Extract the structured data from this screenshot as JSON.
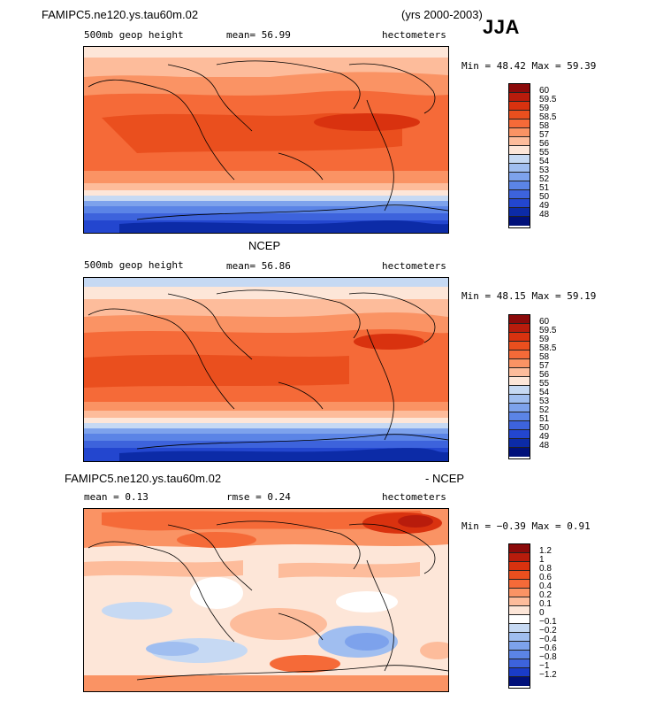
{
  "header": {
    "case_name": "FAMIPC5.ne120.ys.tau60m.02",
    "years": "(yrs 2000-2003)",
    "season": "JJA"
  },
  "panels": [
    {
      "id": "model",
      "title": "",
      "variable": "500mb geop height",
      "stat_text": "mean=   56.99",
      "units": "hectometers",
      "min_max": "Min =   48.42  Max =   59.39",
      "colorbar_labels": [
        "60",
        "59.5",
        "59",
        "58.5",
        "58",
        "57",
        "56",
        "55",
        "54",
        "53",
        "52",
        "51",
        "50",
        "49",
        "48"
      ],
      "colorbar_colors": [
        "#8b0a0a",
        "#b81c0c",
        "#d9320f",
        "#ea4f1e",
        "#f56a38",
        "#fa9364",
        "#fdbc9b",
        "#fde6d8",
        "#c6d9f3",
        "#a0bef0",
        "#7da2ec",
        "#5b84e6",
        "#3d63dc",
        "#2346cf",
        "#0c2ba7",
        "#00107a"
      ]
    },
    {
      "id": "ncep",
      "title": "NCEP",
      "variable": "500mb geop height",
      "stat_text": "mean=   56.86",
      "units": "hectometers",
      "min_max": "Min =   48.15  Max =   59.19",
      "colorbar_labels": [
        "60",
        "59.5",
        "59",
        "58.5",
        "58",
        "57",
        "56",
        "55",
        "54",
        "53",
        "52",
        "51",
        "50",
        "49",
        "48"
      ],
      "colorbar_colors": [
        "#8b0a0a",
        "#b81c0c",
        "#d9320f",
        "#ea4f1e",
        "#f56a38",
        "#fa9364",
        "#fdbc9b",
        "#fde6d8",
        "#c6d9f3",
        "#a0bef0",
        "#7da2ec",
        "#5b84e6",
        "#3d63dc",
        "#2346cf",
        "#0c2ba7",
        "#00107a"
      ]
    },
    {
      "id": "diff",
      "title_left": "FAMIPC5.ne120.ys.tau60m.02",
      "title_right": "- NCEP",
      "mean_text": "mean =     0.13",
      "rmse_text": "rmse =     0.24",
      "units": "hectometers",
      "min_max": "Min =  −0.39  Max =     0.91",
      "colorbar_labels": [
        "1.2",
        "1",
        "0.8",
        "0.6",
        "0.4",
        "0.2",
        "0.1",
        "0",
        "−0.1",
        "−0.2",
        "−0.4",
        "−0.6",
        "−0.8",
        "−1",
        "−1.2"
      ],
      "colorbar_colors": [
        "#8b0a0a",
        "#b81c0c",
        "#d9320f",
        "#ea4f1e",
        "#f56a38",
        "#fa9364",
        "#fdbc9b",
        "#fde6d8",
        "#ffffff",
        "#c6d9f3",
        "#a0bef0",
        "#7da2ec",
        "#5b84e6",
        "#3d63dc",
        "#1a3cc8",
        "#00107a"
      ]
    }
  ]
}
